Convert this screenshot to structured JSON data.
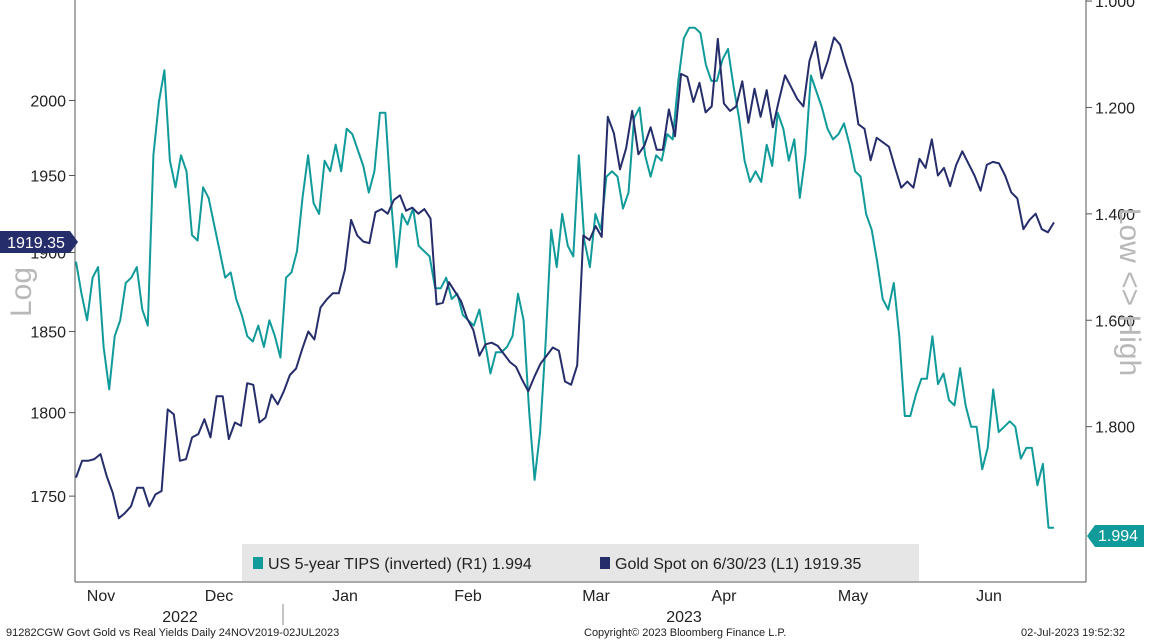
{
  "footer": {
    "left": "91282CGW Govt Gold vs Real Yields  Daily 24NOV2019-02JUL2023",
    "center": "Copyright© 2023 Bloomberg Finance L.P.",
    "right": "02-Jul-2023 19:52:32"
  },
  "chart_data": {
    "type": "line",
    "left_axis": {
      "label": "Log",
      "ticks": [
        "1750",
        "1800",
        "1850",
        "1900",
        "1950",
        "2000"
      ],
      "tick_values": [
        1750,
        1800,
        1850,
        1900,
        1950,
        2000
      ],
      "range": [
        1700,
        2069
      ],
      "scale": "log"
    },
    "right_axis": {
      "label": "Low <> High",
      "ticks": [
        "1.000",
        "1.200",
        "1.400",
        "1.600",
        "1.800"
      ],
      "tick_values": [
        1.0,
        1.2,
        1.4,
        1.6,
        1.8
      ],
      "range": [
        0.998,
        2.092
      ],
      "inverted": true
    },
    "x_axis": {
      "months": [
        "Nov",
        "Dec",
        "Jan",
        "Feb",
        "Mar",
        "Apr",
        "May",
        "Jun"
      ],
      "years": [
        "2022",
        "2023"
      ]
    },
    "last_value_tags": {
      "left": "1919.35",
      "right": "1.994"
    },
    "legend": [
      {
        "text": "US 5-year TIPS (inverted) (R1) 1.994",
        "color": "#119a9a"
      },
      {
        "text": "Gold Spot on 6/30/23 (L1) 1919.35",
        "color": "#262d6b"
      }
    ],
    "series": [
      {
        "name": "US 5-year TIPS (inverted) (R1) 1.994",
        "axis": "right",
        "color": "#119a9a",
        "values": [
          1.49,
          1.55,
          1.6,
          1.52,
          1.5,
          1.65,
          1.73,
          1.63,
          1.6,
          1.53,
          1.52,
          1.5,
          1.58,
          1.61,
          1.29,
          1.19,
          1.13,
          1.3,
          1.35,
          1.29,
          1.32,
          1.44,
          1.45,
          1.35,
          1.37,
          1.42,
          1.47,
          1.52,
          1.51,
          1.56,
          1.59,
          1.63,
          1.64,
          1.61,
          1.65,
          1.6,
          1.63,
          1.67,
          1.52,
          1.51,
          1.47,
          1.37,
          1.29,
          1.38,
          1.4,
          1.3,
          1.32,
          1.27,
          1.32,
          1.24,
          1.25,
          1.28,
          1.31,
          1.36,
          1.32,
          1.21,
          1.21,
          1.37,
          1.5,
          1.4,
          1.42,
          1.39,
          1.46,
          1.47,
          1.48,
          1.54,
          1.54,
          1.52,
          1.56,
          1.55,
          1.59,
          1.6,
          1.61,
          1.58,
          1.64,
          1.7,
          1.66,
          1.66,
          1.65,
          1.63,
          1.55,
          1.6,
          1.77,
          1.9,
          1.81,
          1.64,
          1.43,
          1.5,
          1.4,
          1.46,
          1.48,
          1.29,
          1.45,
          1.5,
          1.4,
          1.43,
          1.33,
          1.32,
          1.33,
          1.39,
          1.36,
          1.22,
          1.2,
          1.29,
          1.33,
          1.29,
          1.3,
          1.25,
          1.26,
          1.15,
          1.07,
          1.05,
          1.05,
          1.06,
          1.12,
          1.15,
          1.15,
          1.11,
          1.09,
          1.16,
          1.22,
          1.3,
          1.34,
          1.32,
          1.34,
          1.27,
          1.31,
          1.21,
          1.24,
          1.3,
          1.26,
          1.37,
          1.29,
          1.14,
          1.17,
          1.2,
          1.24,
          1.26,
          1.25,
          1.23,
          1.27,
          1.32,
          1.33,
          1.4,
          1.43,
          1.49,
          1.56,
          1.58,
          1.53,
          1.63,
          1.78,
          1.78,
          1.74,
          1.71,
          1.71,
          1.63,
          1.72,
          1.7,
          1.75,
          1.76,
          1.69,
          1.76,
          1.8,
          1.8,
          1.88,
          1.84,
          1.73,
          1.81,
          1.8,
          1.79,
          1.8,
          1.86,
          1.84,
          1.84,
          1.91,
          1.87,
          1.99,
          1.99
        ]
      },
      {
        "name": "Gold Spot on 6/30/23 (L1) 1919.35",
        "axis": "left",
        "color": "#262d6b",
        "values": [
          1761,
          1771,
          1771,
          1772,
          1775,
          1762,
          1752,
          1737,
          1740,
          1744,
          1755,
          1755,
          1744,
          1751,
          1753,
          1802,
          1799,
          1771,
          1772,
          1785,
          1787,
          1796,
          1785,
          1810,
          1810,
          1784,
          1794,
          1792,
          1818,
          1817,
          1794,
          1797,
          1811,
          1805,
          1813,
          1823,
          1827,
          1839,
          1850,
          1845,
          1865,
          1870,
          1874,
          1874,
          1889,
          1921,
          1911,
          1907,
          1906,
          1926,
          1928,
          1925,
          1934,
          1937,
          1927,
          1929,
          1925,
          1928,
          1922,
          1867,
          1868,
          1881,
          1875,
          1869,
          1858,
          1851,
          1835,
          1842,
          1843,
          1841,
          1836,
          1831,
          1828,
          1820,
          1813,
          1822,
          1830,
          1835,
          1840,
          1838,
          1819,
          1817,
          1829,
          1911,
          1908,
          1917,
          1910,
          1989,
          1978,
          1954,
          1968,
          1993,
          1964,
          1970,
          1982,
          1967,
          1967,
          1994,
          1976,
          2018,
          2016,
          1999,
          2012,
          1992,
          1996,
          2042,
          1998,
          1993,
          1996,
          2013,
          1985,
          2008,
          1989,
          2007,
          1982,
          2000,
          2017,
          2009,
          2001,
          1996,
          2027,
          2040,
          2015,
          2027,
          2043,
          2038,
          2024,
          2011,
          1984,
          1981,
          1960,
          1975,
          1972,
          1969,
          1955,
          1942,
          1946,
          1942,
          1961,
          1955,
          1974,
          1950,
          1955,
          1943,
          1957,
          1966,
          1958,
          1950,
          1940,
          1957,
          1959,
          1958,
          1950,
          1939,
          1935,
          1915,
          1921,
          1925,
          1915,
          1913,
          1919.35
        ]
      }
    ]
  }
}
